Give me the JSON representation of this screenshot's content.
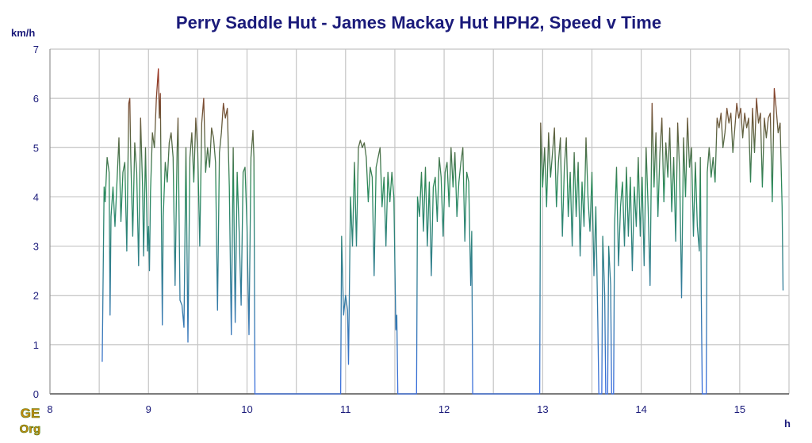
{
  "chart_data": {
    "type": "line",
    "title": "Perry Saddle Hut - James Mackay Hut HPH2, Speed v Time",
    "ylabel": "km/h",
    "xlabel": "h",
    "xlim": [
      8,
      15.5
    ],
    "ylim": [
      0,
      7
    ],
    "x_ticks": [
      8,
      9,
      10,
      11,
      12,
      13,
      14,
      15
    ],
    "y_ticks": [
      0,
      1,
      2,
      3,
      4,
      5,
      6,
      7
    ],
    "grid": true,
    "color_scale": {
      "low": "#3a6ee0",
      "mid": "#2a8a5a",
      "high": "#a03020"
    },
    "series": [
      {
        "values": [
          [
            8.53,
            0.65
          ],
          [
            8.55,
            4.2
          ],
          [
            8.56,
            3.9
          ],
          [
            8.58,
            4.8
          ],
          [
            8.6,
            4.5
          ],
          [
            8.61,
            1.6
          ],
          [
            8.62,
            3.6
          ],
          [
            8.64,
            4.2
          ],
          [
            8.66,
            3.4
          ],
          [
            8.68,
            4.3
          ],
          [
            8.7,
            5.2
          ],
          [
            8.72,
            3.5
          ],
          [
            8.74,
            4.5
          ],
          [
            8.76,
            4.7
          ],
          [
            8.78,
            2.9
          ],
          [
            8.8,
            5.9
          ],
          [
            8.81,
            6.0
          ],
          [
            8.82,
            4.8
          ],
          [
            8.84,
            3.2
          ],
          [
            8.86,
            5.1
          ],
          [
            8.88,
            4.5
          ],
          [
            8.9,
            2.6
          ],
          [
            8.92,
            5.6
          ],
          [
            8.94,
            4.2
          ],
          [
            8.95,
            2.8
          ],
          [
            8.97,
            5.0
          ],
          [
            8.99,
            2.9
          ],
          [
            9.0,
            3.4
          ],
          [
            9.01,
            2.5
          ],
          [
            9.02,
            4.1
          ],
          [
            9.04,
            5.3
          ],
          [
            9.06,
            5.0
          ],
          [
            9.08,
            6.0
          ],
          [
            9.1,
            6.6
          ],
          [
            9.11,
            5.6
          ],
          [
            9.12,
            6.1
          ],
          [
            9.14,
            1.4
          ],
          [
            9.15,
            3.6
          ],
          [
            9.17,
            4.7
          ],
          [
            9.19,
            4.3
          ],
          [
            9.21,
            5.1
          ],
          [
            9.23,
            5.3
          ],
          [
            9.25,
            4.8
          ],
          [
            9.27,
            2.2
          ],
          [
            9.29,
            4.9
          ],
          [
            9.3,
            5.6
          ],
          [
            9.32,
            1.9
          ],
          [
            9.34,
            1.8
          ],
          [
            9.36,
            1.35
          ],
          [
            9.38,
            5.0
          ],
          [
            9.4,
            1.05
          ],
          [
            9.42,
            4.8
          ],
          [
            9.44,
            5.3
          ],
          [
            9.46,
            4.3
          ],
          [
            9.48,
            5.6
          ],
          [
            9.5,
            4.9
          ],
          [
            9.52,
            3.0
          ],
          [
            9.54,
            5.5
          ],
          [
            9.56,
            6.0
          ],
          [
            9.58,
            4.5
          ],
          [
            9.6,
            5.0
          ],
          [
            9.62,
            4.6
          ],
          [
            9.64,
            5.4
          ],
          [
            9.66,
            5.2
          ],
          [
            9.68,
            4.7
          ],
          [
            9.7,
            1.7
          ],
          [
            9.72,
            4.9
          ],
          [
            9.74,
            5.3
          ],
          [
            9.76,
            5.9
          ],
          [
            9.78,
            5.6
          ],
          [
            9.8,
            5.8
          ],
          [
            9.82,
            4.2
          ],
          [
            9.84,
            1.2
          ],
          [
            9.86,
            5.0
          ],
          [
            9.88,
            1.45
          ],
          [
            9.9,
            4.5
          ],
          [
            9.92,
            3.3
          ],
          [
            9.94,
            1.8
          ],
          [
            9.96,
            4.5
          ],
          [
            9.98,
            4.6
          ],
          [
            10.0,
            3.4
          ],
          [
            10.02,
            1.2
          ],
          [
            10.04,
            4.8
          ],
          [
            10.06,
            5.35
          ],
          [
            10.07,
            4.8
          ],
          [
            10.08,
            0.0
          ],
          [
            10.95,
            0.0
          ],
          [
            10.96,
            3.2
          ],
          [
            10.98,
            1.6
          ],
          [
            11.0,
            2.0
          ],
          [
            11.02,
            1.7
          ],
          [
            11.03,
            0.6
          ],
          [
            11.05,
            4.0
          ],
          [
            11.07,
            3.0
          ],
          [
            11.09,
            4.7
          ],
          [
            11.11,
            3.0
          ],
          [
            11.13,
            5.0
          ],
          [
            11.15,
            5.15
          ],
          [
            11.17,
            5.0
          ],
          [
            11.19,
            5.1
          ],
          [
            11.21,
            4.8
          ],
          [
            11.23,
            3.9
          ],
          [
            11.25,
            4.6
          ],
          [
            11.27,
            4.4
          ],
          [
            11.29,
            2.4
          ],
          [
            11.31,
            4.6
          ],
          [
            11.33,
            4.8
          ],
          [
            11.35,
            5.0
          ],
          [
            11.37,
            3.8
          ],
          [
            11.39,
            4.4
          ],
          [
            11.41,
            3.0
          ],
          [
            11.43,
            4.5
          ],
          [
            11.45,
            3.9
          ],
          [
            11.47,
            4.5
          ],
          [
            11.49,
            4.0
          ],
          [
            11.51,
            1.3
          ],
          [
            11.52,
            1.6
          ],
          [
            11.53,
            0.0
          ],
          [
            11.72,
            0.0
          ],
          [
            11.73,
            4.0
          ],
          [
            11.75,
            3.6
          ],
          [
            11.77,
            4.5
          ],
          [
            11.79,
            3.3
          ],
          [
            11.81,
            4.6
          ],
          [
            11.83,
            3.0
          ],
          [
            11.85,
            4.3
          ],
          [
            11.87,
            2.4
          ],
          [
            11.89,
            4.2
          ],
          [
            11.91,
            4.4
          ],
          [
            11.93,
            3.5
          ],
          [
            11.95,
            4.8
          ],
          [
            11.97,
            4.4
          ],
          [
            11.99,
            3.2
          ],
          [
            12.01,
            4.5
          ],
          [
            12.03,
            4.7
          ],
          [
            12.05,
            3.8
          ],
          [
            12.07,
            5.0
          ],
          [
            12.09,
            4.2
          ],
          [
            12.11,
            4.9
          ],
          [
            12.13,
            3.6
          ],
          [
            12.15,
            4.3
          ],
          [
            12.17,
            4.7
          ],
          [
            12.19,
            5.0
          ],
          [
            12.21,
            3.1
          ],
          [
            12.23,
            4.5
          ],
          [
            12.25,
            4.3
          ],
          [
            12.27,
            2.2
          ],
          [
            12.28,
            3.3
          ],
          [
            12.29,
            0.0
          ],
          [
            12.97,
            0.0
          ],
          [
            12.98,
            5.5
          ],
          [
            13.0,
            4.2
          ],
          [
            13.02,
            5.0
          ],
          [
            13.04,
            3.8
          ],
          [
            13.06,
            5.3
          ],
          [
            13.08,
            4.4
          ],
          [
            13.1,
            4.9
          ],
          [
            13.12,
            5.4
          ],
          [
            13.14,
            3.8
          ],
          [
            13.16,
            4.7
          ],
          [
            13.18,
            5.2
          ],
          [
            13.2,
            3.2
          ],
          [
            13.22,
            4.6
          ],
          [
            13.24,
            5.2
          ],
          [
            13.26,
            3.6
          ],
          [
            13.28,
            4.5
          ],
          [
            13.3,
            3.0
          ],
          [
            13.32,
            4.9
          ],
          [
            13.34,
            3.6
          ],
          [
            13.36,
            4.7
          ],
          [
            13.38,
            2.8
          ],
          [
            13.4,
            4.3
          ],
          [
            13.42,
            3.4
          ],
          [
            13.44,
            5.2
          ],
          [
            13.46,
            4.0
          ],
          [
            13.48,
            3.3
          ],
          [
            13.5,
            4.5
          ],
          [
            13.52,
            2.4
          ],
          [
            13.54,
            3.8
          ],
          [
            13.56,
            1.45
          ],
          [
            13.57,
            0.0
          ],
          [
            13.6,
            0.0
          ],
          [
            13.61,
            3.2
          ],
          [
            13.63,
            2.0
          ],
          [
            13.64,
            0.0
          ],
          [
            13.66,
            0.0
          ],
          [
            13.67,
            3.0
          ],
          [
            13.69,
            2.2
          ],
          [
            13.7,
            0.0
          ],
          [
            13.72,
            0.0
          ],
          [
            13.73,
            3.4
          ],
          [
            13.75,
            4.6
          ],
          [
            13.77,
            2.6
          ],
          [
            13.79,
            3.8
          ],
          [
            13.81,
            4.3
          ],
          [
            13.83,
            3.0
          ],
          [
            13.85,
            4.6
          ],
          [
            13.87,
            3.2
          ],
          [
            13.89,
            4.4
          ],
          [
            13.91,
            2.5
          ],
          [
            13.93,
            4.2
          ],
          [
            13.95,
            3.4
          ],
          [
            13.97,
            4.8
          ],
          [
            13.99,
            3.2
          ],
          [
            14.01,
            4.4
          ],
          [
            14.03,
            2.6
          ],
          [
            14.05,
            5.0
          ],
          [
            14.07,
            3.8
          ],
          [
            14.09,
            2.2
          ],
          [
            14.11,
            5.9
          ],
          [
            14.13,
            4.2
          ],
          [
            14.15,
            5.3
          ],
          [
            14.17,
            3.6
          ],
          [
            14.19,
            4.9
          ],
          [
            14.21,
            5.6
          ],
          [
            14.23,
            3.9
          ],
          [
            14.25,
            5.1
          ],
          [
            14.27,
            4.4
          ],
          [
            14.29,
            5.4
          ],
          [
            14.31,
            3.7
          ],
          [
            14.33,
            4.8
          ],
          [
            14.35,
            3.1
          ],
          [
            14.37,
            5.5
          ],
          [
            14.39,
            4.5
          ],
          [
            14.41,
            1.95
          ],
          [
            14.43,
            5.2
          ],
          [
            14.45,
            4.0
          ],
          [
            14.47,
            5.6
          ],
          [
            14.49,
            4.6
          ],
          [
            14.51,
            5.0
          ],
          [
            14.53,
            3.2
          ],
          [
            14.55,
            4.7
          ],
          [
            14.57,
            3.4
          ],
          [
            14.59,
            2.9
          ],
          [
            14.6,
            4.8
          ],
          [
            14.61,
            2.0
          ],
          [
            14.62,
            0.0
          ],
          [
            14.66,
            0.0
          ],
          [
            14.67,
            4.5
          ],
          [
            14.69,
            5.0
          ],
          [
            14.71,
            4.4
          ],
          [
            14.73,
            4.8
          ],
          [
            14.75,
            4.3
          ],
          [
            14.77,
            5.6
          ],
          [
            14.79,
            5.4
          ],
          [
            14.81,
            5.7
          ],
          [
            14.83,
            5.0
          ],
          [
            14.85,
            5.3
          ],
          [
            14.87,
            5.8
          ],
          [
            14.89,
            5.5
          ],
          [
            14.91,
            5.7
          ],
          [
            14.93,
            4.9
          ],
          [
            14.95,
            5.4
          ],
          [
            14.97,
            5.9
          ],
          [
            14.99,
            5.6
          ],
          [
            15.01,
            5.8
          ],
          [
            15.03,
            5.2
          ],
          [
            15.05,
            5.7
          ],
          [
            15.07,
            5.4
          ],
          [
            15.09,
            5.6
          ],
          [
            15.11,
            4.3
          ],
          [
            15.13,
            5.8
          ],
          [
            15.15,
            4.9
          ],
          [
            15.17,
            6.0
          ],
          [
            15.19,
            5.5
          ],
          [
            15.21,
            5.7
          ],
          [
            15.23,
            4.2
          ],
          [
            15.25,
            5.6
          ],
          [
            15.27,
            5.2
          ],
          [
            15.29,
            5.6
          ],
          [
            15.31,
            5.7
          ],
          [
            15.33,
            3.9
          ],
          [
            15.35,
            6.2
          ],
          [
            15.37,
            5.8
          ],
          [
            15.39,
            5.3
          ],
          [
            15.41,
            5.5
          ],
          [
            15.43,
            3.8
          ],
          [
            15.44,
            2.1
          ]
        ]
      }
    ]
  },
  "logo": {
    "text": "GE Org"
  }
}
